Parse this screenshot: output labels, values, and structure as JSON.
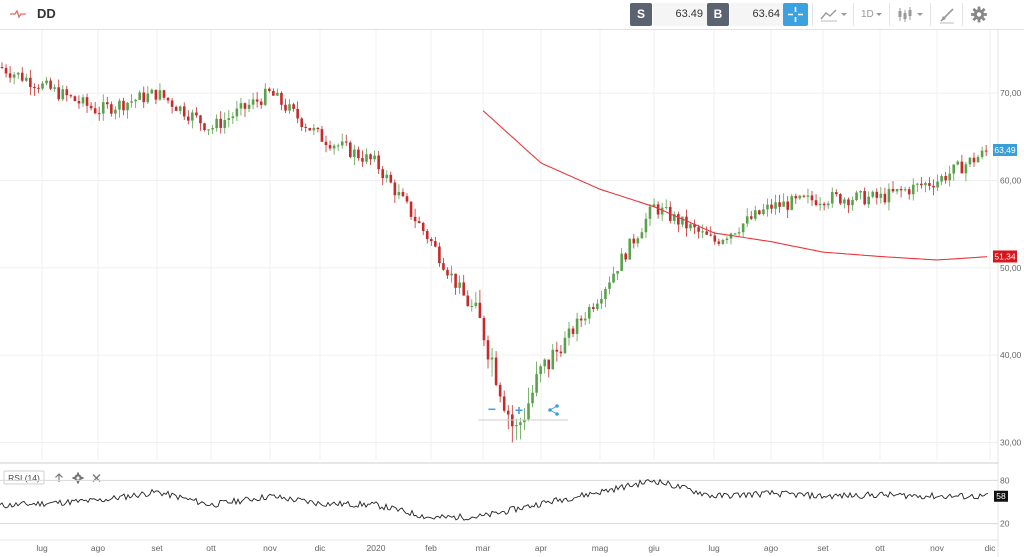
{
  "header": {
    "symbol": "DD",
    "sell_label": "S",
    "sell_price": "63.49",
    "buy_label": "B",
    "buy_price": "63.64",
    "timeframe": "1D",
    "icons": [
      "chart-type-icon",
      "crosshair-icon",
      "candle-style-icon",
      "draw-tools-icon",
      "settings-icon"
    ]
  },
  "indicator": {
    "label": "RSI (14)",
    "icons": [
      "arrow-up-icon",
      "gear-icon",
      "close-icon"
    ]
  },
  "colors": {
    "up_candle": "#5aa14b",
    "down_candle": "#c82a2a",
    "moving_average": "#e8383d",
    "bid_tag": "#3a9fd8",
    "ma_tag": "#d9141b",
    "rsi_line": "#222222"
  },
  "chart_data": [
    {
      "type": "candlestick",
      "x": [
        "lug",
        "ago",
        "set",
        "ott",
        "nov",
        "dic",
        "2020",
        "feb",
        "mar",
        "apr",
        "mag",
        "giu",
        "lug",
        "ago",
        "set",
        "ott",
        "nov",
        "dic"
      ],
      "yticks": [
        "70,00",
        "60,00",
        "50,00",
        "40,00",
        "30,00"
      ],
      "ytick_values": [
        70,
        60,
        50,
        40,
        30
      ],
      "ylim": [
        28,
        77
      ],
      "approx_close_path": [
        {
          "month": "lug",
          "value": 73
        },
        {
          "month": "ago",
          "value": 68
        },
        {
          "month": "set",
          "value": 70
        },
        {
          "month": "ott",
          "value": 66
        },
        {
          "month": "nov",
          "value": 70
        },
        {
          "month": "dic",
          "value": 65
        },
        {
          "month": "2020",
          "value": 62
        },
        {
          "month": "feb",
          "value": 53
        },
        {
          "month": "mar",
          "value": 43
        },
        {
          "month": "mar",
          "value": 31
        },
        {
          "month": "apr",
          "value": 38
        },
        {
          "month": "mag",
          "value": 47
        },
        {
          "month": "giu",
          "value": 57
        },
        {
          "month": "lug",
          "value": 53
        },
        {
          "month": "ago",
          "value": 57
        },
        {
          "month": "set",
          "value": 58
        },
        {
          "month": "ott",
          "value": 58
        },
        {
          "month": "nov",
          "value": 60
        },
        {
          "month": "dic",
          "value": 63.49
        }
      ],
      "moving_average_path": [
        {
          "month": "mar",
          "value": 68
        },
        {
          "month": "apr",
          "value": 62
        },
        {
          "month": "mag",
          "value": 59
        },
        {
          "month": "giu",
          "value": 57
        },
        {
          "month": "lug",
          "value": 54
        },
        {
          "month": "ago",
          "value": 53
        },
        {
          "month": "set",
          "value": 51.8
        },
        {
          "month": "ott",
          "value": 51.3
        },
        {
          "month": "nov",
          "value": 50.9
        },
        {
          "month": "dic",
          "value": 51.3
        }
      ],
      "last_price_tag": "63,49",
      "last_price_value": 63.49,
      "ma_tag": "51,34",
      "ma_tag_value": 51.3,
      "zoom_controls": {
        "minus": "−",
        "plus": "+"
      }
    },
    {
      "type": "line",
      "name": "RSI (14)",
      "yticks": [
        "80",
        "20"
      ],
      "ytick_values": [
        80,
        20
      ],
      "ylim": [
        0,
        100
      ],
      "last_value_tag": "58",
      "last_value": 58,
      "approx_path": [
        {
          "month": "lug",
          "value": 45
        },
        {
          "month": "ago",
          "value": 52
        },
        {
          "month": "set",
          "value": 64
        },
        {
          "month": "ott",
          "value": 46
        },
        {
          "month": "nov",
          "value": 58
        },
        {
          "month": "dic",
          "value": 48
        },
        {
          "month": "2020",
          "value": 46
        },
        {
          "month": "feb",
          "value": 28
        },
        {
          "month": "mar",
          "value": 30
        },
        {
          "month": "apr",
          "value": 48
        },
        {
          "month": "mag",
          "value": 64
        },
        {
          "month": "giu",
          "value": 80
        },
        {
          "month": "lug",
          "value": 58
        },
        {
          "month": "ago",
          "value": 62
        },
        {
          "month": "set",
          "value": 58
        },
        {
          "month": "ott",
          "value": 60
        },
        {
          "month": "nov",
          "value": 58
        },
        {
          "month": "dic",
          "value": 58
        }
      ]
    }
  ]
}
